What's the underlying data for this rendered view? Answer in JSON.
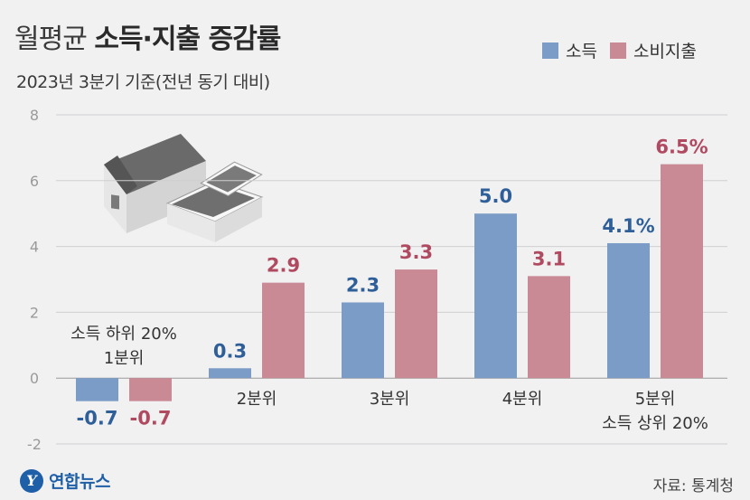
{
  "header": {
    "title_light": "월평균",
    "title_bold": "소득·지출 증감률",
    "subtitle": "2023년 3분기 기준(전년 동기 대비)"
  },
  "legend": [
    {
      "label": "소득",
      "color": "#7b9cc6"
    },
    {
      "label": "소비지출",
      "color": "#c98a96"
    }
  ],
  "chart_data": {
    "type": "bar",
    "categories": [
      "소득 하위 20% 1분위",
      "2분위",
      "3분위",
      "4분위",
      "5분위 소득 상위 20%"
    ],
    "category_labels": [
      [
        "소득 하위 20%",
        "1분위"
      ],
      [
        "2분위"
      ],
      [
        "3분위"
      ],
      [
        "4분위"
      ],
      [
        "5분위",
        "소득 상위 20%"
      ]
    ],
    "series": [
      {
        "name": "소득",
        "values": [
          -0.7,
          0.3,
          2.3,
          5.0,
          4.1
        ],
        "color": "#7b9cc6",
        "label_color": "#2f5f98"
      },
      {
        "name": "소비지출",
        "values": [
          -0.7,
          2.9,
          3.3,
          3.1,
          6.5
        ],
        "color": "#c98a96",
        "label_color": "#b04a60"
      }
    ],
    "value_labels": [
      [
        "-0.7",
        "0.3",
        "2.3",
        "5.0",
        "4.1%"
      ],
      [
        "-0.7",
        "2.9",
        "3.3",
        "3.1",
        "6.5%"
      ]
    ],
    "yticks": [
      8,
      6,
      4,
      2,
      0,
      -2
    ],
    "ylim": [
      -2,
      8
    ],
    "grid": true,
    "legend_position": "top-right"
  },
  "footer": {
    "logo_mark": "Y",
    "logo_text": "연합뉴스",
    "source": "자료: 통계청"
  }
}
